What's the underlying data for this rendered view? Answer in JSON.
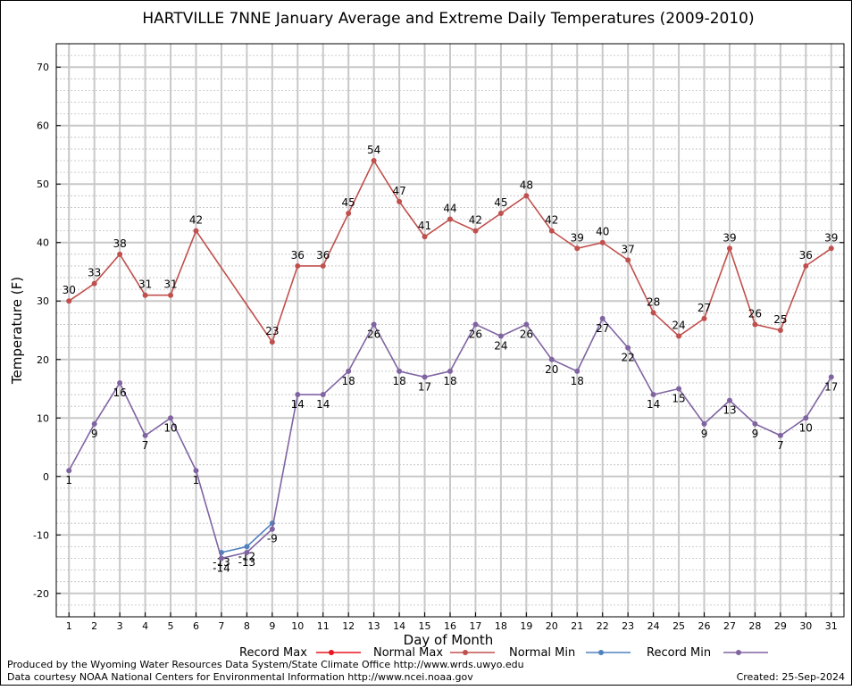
{
  "chart_data": {
    "type": "line",
    "title": "HARTVILLE 7NNE January Average and Extreme Daily Temperatures (2009-2010)",
    "xlabel": "Day of Month",
    "ylabel": "Temperature (F)",
    "xlim": [
      0.5,
      31.5
    ],
    "ylim": [
      -24,
      74
    ],
    "y_ticks": [
      -20,
      -10,
      0,
      10,
      20,
      30,
      40,
      50,
      60,
      70
    ],
    "x_ticks": [
      1,
      2,
      3,
      4,
      5,
      6,
      7,
      8,
      9,
      10,
      11,
      12,
      13,
      14,
      15,
      16,
      17,
      18,
      19,
      20,
      21,
      22,
      23,
      24,
      25,
      26,
      27,
      28,
      29,
      30,
      31
    ],
    "grid": true,
    "legend_position": "bottom",
    "series": [
      {
        "name": "Record Max",
        "color": "#e8141e",
        "x": [],
        "values": []
      },
      {
        "name": "Normal Max",
        "color": "#c0504d",
        "x": [
          1,
          2,
          3,
          4,
          5,
          6,
          9,
          10,
          11,
          12,
          13,
          14,
          15,
          16,
          17,
          18,
          19,
          20,
          21,
          22,
          23,
          24,
          25,
          26,
          27,
          28,
          29,
          30,
          31
        ],
        "values": [
          30,
          33,
          38,
          31,
          31,
          42,
          23,
          36,
          36,
          45,
          54,
          47,
          41,
          44,
          42,
          45,
          48,
          42,
          39,
          40,
          37,
          28,
          24,
          27,
          39,
          26,
          25,
          36,
          39
        ],
        "labels": [
          "30",
          "33",
          "38",
          "31",
          "31",
          "42",
          "23",
          "36",
          "36",
          "45",
          "54",
          "47",
          "41",
          "44",
          "42",
          "45",
          "48",
          "42",
          "39",
          "40",
          "37",
          "28",
          "24",
          "27",
          "39",
          "26",
          "25",
          "36",
          "39"
        ],
        "label_pos": [
          "above",
          "above",
          "above",
          "above",
          "above",
          "above",
          "above",
          "above",
          "above",
          "above",
          "above",
          "above",
          "above",
          "above",
          "above",
          "above",
          "above",
          "above",
          "above",
          "above",
          "above",
          "above",
          "above",
          "above",
          "above",
          "above",
          "above",
          "above",
          "above"
        ]
      },
      {
        "name": "Normal Min",
        "color": "#4f81bd",
        "x": [
          7,
          8,
          9
        ],
        "values": [
          -13,
          -12,
          -8
        ],
        "labels": [
          "-13",
          "-12",
          ""
        ],
        "label_pos": [
          "below",
          "below",
          "below"
        ]
      },
      {
        "name": "Record Min",
        "color": "#8064a2",
        "x": [
          1,
          2,
          3,
          4,
          5,
          6,
          7,
          8,
          9,
          10,
          11,
          12,
          13,
          14,
          15,
          16,
          17,
          18,
          19,
          20,
          21,
          22,
          23,
          24,
          25,
          26,
          27,
          28,
          29,
          30,
          31
        ],
        "values": [
          1,
          9,
          16,
          7,
          10,
          1,
          -14,
          -13,
          -9,
          14,
          14,
          18,
          26,
          18,
          17,
          18,
          26,
          24,
          26,
          20,
          18,
          27,
          22,
          14,
          15,
          9,
          13,
          9,
          7,
          10,
          17
        ],
        "labels": [
          "1",
          "9",
          "16",
          "7",
          "10",
          "1",
          "-14",
          "-13",
          "-9",
          "14",
          "14",
          "18",
          "26",
          "18",
          "17",
          "18",
          "26",
          "24",
          "26",
          "20",
          "18",
          "27",
          "22",
          "14",
          "15",
          "9",
          "13",
          "9",
          "7",
          "10",
          "17"
        ],
        "label_pos": [
          "below",
          "below",
          "below",
          "below",
          "below",
          "below",
          "below",
          "below",
          "below",
          "below",
          "below",
          "below",
          "below",
          "below",
          "below",
          "below",
          "below",
          "below",
          "below",
          "below",
          "below",
          "below",
          "below",
          "below",
          "below",
          "below",
          "below",
          "below",
          "below",
          "below",
          "below"
        ]
      }
    ]
  },
  "footer": {
    "produced_by": "Produced by the Wyoming Water Resources Data System/State Climate Office http://www.wrds.uwyo.edu",
    "courtesy": "Data courtesy NOAA National Centers for Environmental Information http://www.ncei.noaa.gov",
    "created": "Created:  25-Sep-2024"
  }
}
